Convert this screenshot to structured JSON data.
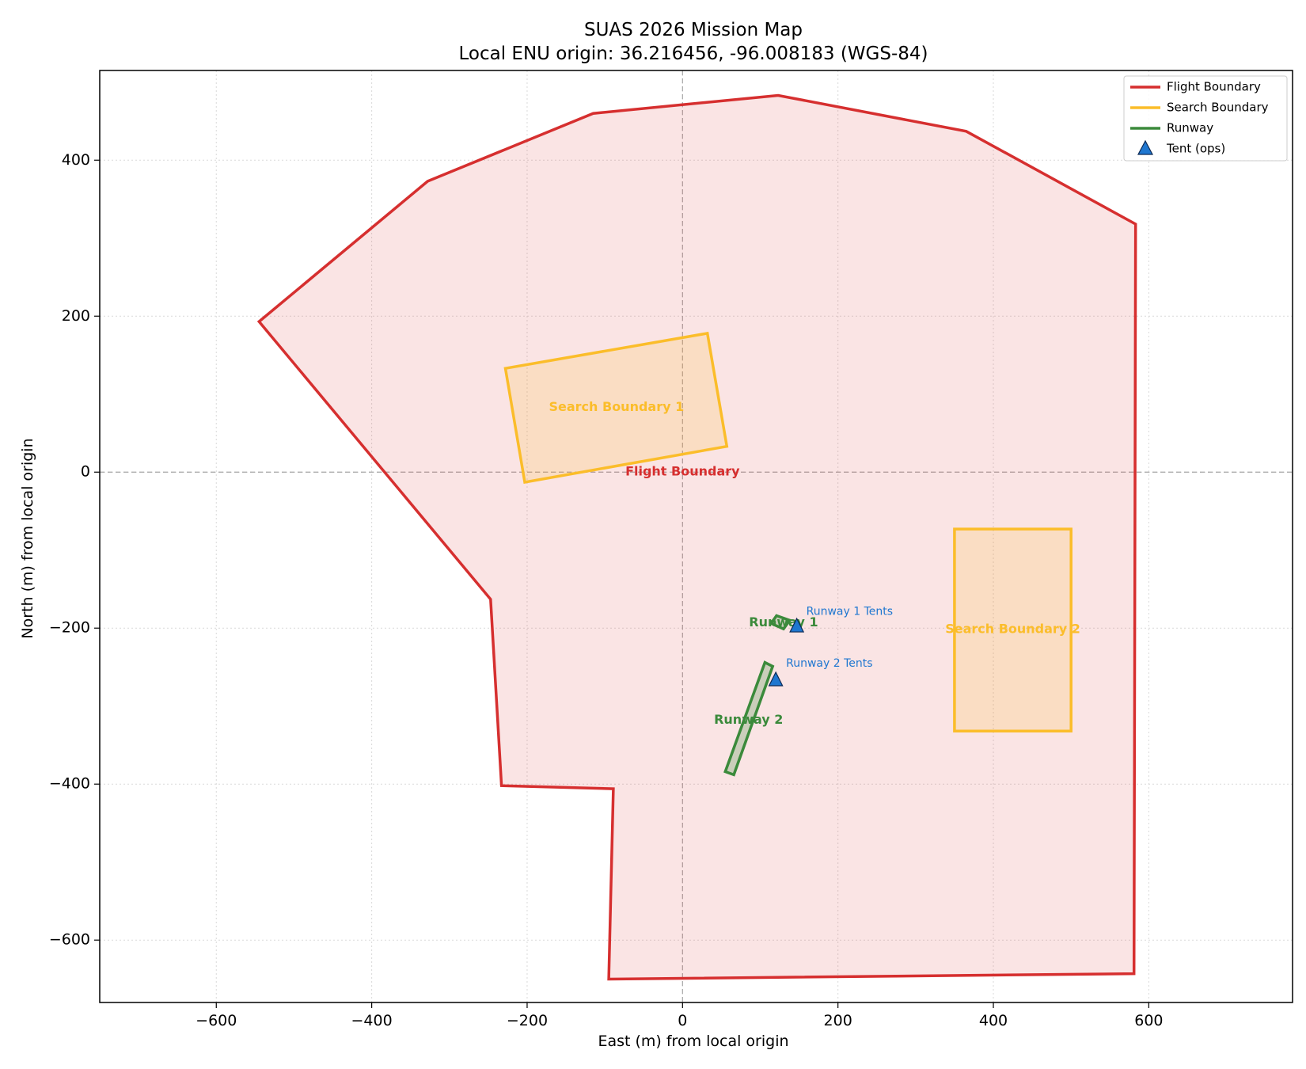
{
  "chart_data": {
    "type": "map",
    "title": "SUAS 2026 Mission Map",
    "subtitle": "Local ENU origin: 36.216456, -96.008183 (WGS-84)",
    "xlabel": "East (m)  from local origin",
    "ylabel": "North (m)  from local origin",
    "xlim": [
      -750,
      785
    ],
    "ylim": [
      -680,
      515
    ],
    "xticks": [
      -600,
      -400,
      -200,
      0,
      200,
      400,
      600
    ],
    "yticks": [
      -600,
      -400,
      -200,
      0,
      200,
      400
    ],
    "xtick_labels": [
      "−600",
      "−400",
      "−200",
      "0",
      "200",
      "400",
      "600"
    ],
    "ytick_labels": [
      "−600",
      "−400",
      "−200",
      "0",
      "200",
      "400"
    ],
    "grid": true,
    "legend_position": "top-right",
    "colors": {
      "flight": "#d62f2f",
      "search": "#fbbd2a",
      "runway": "#3b8a3b",
      "tent": "#1f77d0"
    },
    "legend": [
      {
        "label": "Flight Boundary",
        "kind": "line",
        "color": "#d62f2f"
      },
      {
        "label": "Search Boundary",
        "kind": "line",
        "color": "#fbbd2a"
      },
      {
        "label": "Runway",
        "kind": "line",
        "color": "#3b8a3b"
      },
      {
        "label": "Tent (ops)",
        "kind": "marker",
        "color": "#1f77d0"
      }
    ],
    "polygons": [
      {
        "name": "Flight Boundary",
        "label": "Flight Boundary",
        "label_at": [
          0,
          0
        ],
        "kind": "flight",
        "points": [
          [
            -545,
            193
          ],
          [
            -328,
            373
          ],
          [
            -115,
            460
          ],
          [
            123,
            483
          ],
          [
            365,
            437
          ],
          [
            583,
            318
          ],
          [
            581,
            -643
          ],
          [
            -95,
            -650
          ],
          [
            -89,
            -406
          ],
          [
            -233,
            -402
          ],
          [
            -247,
            -163
          ]
        ]
      },
      {
        "name": "Search Boundary 1",
        "label": "Search Boundary 1",
        "label_at": [
          -85,
          83
        ],
        "kind": "search",
        "points": [
          [
            -228,
            133
          ],
          [
            32,
            178
          ],
          [
            57,
            33
          ],
          [
            -203,
            -13
          ]
        ]
      },
      {
        "name": "Search Boundary 2",
        "label": "Search Boundary 2",
        "label_at": [
          425,
          -202
        ],
        "kind": "search",
        "points": [
          [
            350,
            -73
          ],
          [
            500,
            -73
          ],
          [
            500,
            -332
          ],
          [
            350,
            -332
          ]
        ]
      },
      {
        "name": "Runway 1",
        "label": "Runway 1",
        "label_at": [
          130,
          -193
        ],
        "kind": "runway",
        "points": [
          [
            121,
            -184
          ],
          [
            138,
            -190
          ],
          [
            130,
            -201
          ],
          [
            114,
            -194
          ]
        ]
      },
      {
        "name": "Runway 2",
        "label": "Runway 2",
        "label_at": [
          85,
          -318
        ],
        "kind": "runway",
        "points": [
          [
            106,
            -244
          ],
          [
            116,
            -249
          ],
          [
            66,
            -388
          ],
          [
            55,
            -384
          ]
        ]
      }
    ],
    "markers": [
      {
        "name": "Runway 1 Tents",
        "label": "Runway 1 Tents",
        "x": 147,
        "y": -198,
        "label_dx": 12,
        "label_dy": 15
      },
      {
        "name": "Runway 2 Tents",
        "label": "Runway 2 Tents",
        "x": 120,
        "y": -267,
        "label_dx": 13,
        "label_dy": 17
      }
    ]
  }
}
